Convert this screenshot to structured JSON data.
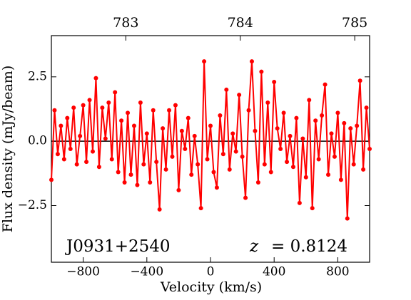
{
  "chart_data": {
    "type": "line",
    "xlabel": "Velocity (km/s)",
    "ylabel": "Flux density (mJy/beam)",
    "annotations": [
      "J0931+2540",
      "z",
      "= 0.8124"
    ],
    "x": [
      -1000,
      -980,
      -960,
      -940,
      -920,
      -900,
      -880,
      -860,
      -840,
      -820,
      -800,
      -780,
      -760,
      -740,
      -720,
      -700,
      -680,
      -660,
      -640,
      -620,
      -600,
      -580,
      -560,
      -540,
      -520,
      -500,
      -480,
      -460,
      -440,
      -420,
      -400,
      -380,
      -360,
      -340,
      -320,
      -300,
      -280,
      -260,
      -240,
      -220,
      -200,
      -180,
      -160,
      -140,
      -120,
      -100,
      -80,
      -60,
      -40,
      -20,
      0,
      20,
      40,
      60,
      80,
      100,
      120,
      140,
      160,
      180,
      200,
      220,
      240,
      260,
      280,
      300,
      320,
      340,
      360,
      380,
      400,
      420,
      440,
      460,
      480,
      500,
      520,
      540,
      560,
      580,
      600,
      620,
      640,
      660,
      680,
      700,
      720,
      740,
      760,
      780,
      800,
      820,
      840,
      860,
      880,
      900,
      920,
      940,
      960,
      980,
      1000
    ],
    "series": [
      {
        "color": "#ff0000",
        "values": [
          -1.5,
          1.2,
          -0.5,
          0.6,
          -0.7,
          0.9,
          -0.3,
          1.3,
          -0.9,
          0.2,
          1.4,
          -0.8,
          1.6,
          -0.4,
          2.45,
          -1.0,
          1.3,
          0.1,
          1.5,
          -0.7,
          1.9,
          -1.2,
          0.8,
          -1.6,
          1.1,
          -1.3,
          0.6,
          -1.7,
          1.5,
          -0.9,
          0.3,
          -1.6,
          1.2,
          -0.8,
          -2.65,
          0.5,
          -1.1,
          1.2,
          -0.6,
          1.4,
          -1.9,
          0.4,
          -0.3,
          0.9,
          -1.3,
          0.2,
          -0.9,
          -2.6,
          3.1,
          -0.7,
          0.6,
          -1.2,
          -1.8,
          1.0,
          -0.5,
          2.0,
          -1.1,
          0.3,
          -0.4,
          1.8,
          -0.6,
          -2.2,
          1.2,
          3.1,
          0.4,
          -1.6,
          2.7,
          -0.9,
          1.5,
          -1.2,
          2.3,
          0.5,
          -0.3,
          1.1,
          -0.8,
          0.2,
          -1.0,
          0.9,
          -2.4,
          0.1,
          -1.4,
          1.6,
          -2.6,
          0.8,
          -0.7,
          1.0,
          2.2,
          -1.3,
          0.3,
          -0.6,
          1.1,
          -1.5,
          0.7,
          -3.0,
          0.5,
          -0.9,
          0.6,
          2.35,
          -1.1,
          1.3,
          -0.3
        ]
      }
    ],
    "xlim": [
      -1000,
      1000
    ],
    "xticks": [
      {
        "value": -800,
        "label": "−800"
      },
      {
        "value": -400,
        "label": "−400"
      },
      0,
      400,
      800
    ],
    "ylim": [
      -4.7,
      4.1
    ],
    "yticks": [
      {
        "value": -2.5,
        "label": "−2.5"
      },
      {
        "value": 0,
        "label": "0.0"
      },
      2.5
    ],
    "x2lim": [
      782.35,
      785.13
    ],
    "x2ticks": [
      783,
      784,
      785
    ],
    "hline": 0
  }
}
